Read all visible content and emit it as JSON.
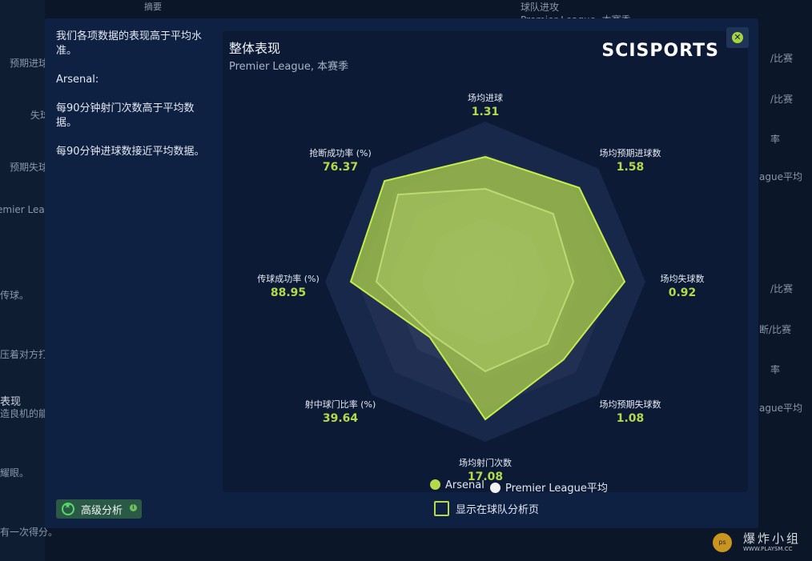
{
  "background": {
    "left_texts": [
      "预期进球",
      "失球",
      "预期失球",
      "emier League",
      "传球。",
      "压着对方打",
      "表现",
      "造良机的能",
      "耀眼。",
      "有一次得分。"
    ],
    "top_texts": [
      "摘要",
      "球队进攻",
      "Premier League, 本赛季"
    ],
    "right_texts": [
      "/比赛",
      "/比赛",
      "率",
      "ague平均",
      "/比赛",
      "断/比赛",
      "率",
      "ague平均"
    ]
  },
  "summary": {
    "intro": "我们各项数据的表现高于平均水准。",
    "team": "Arsenal:",
    "point1": "每90分钟射门次数高于平均数据。",
    "point2": "每90分钟进球数接近平均数据。"
  },
  "chart_header": {
    "title": "整体表现",
    "subtitle": "Premier League, 本赛季",
    "brand": "SCISPORTS"
  },
  "close_icon": "close-x-icon",
  "chart_data": {
    "type": "radar",
    "axes": [
      {
        "label": "场均进球",
        "value": "1.31",
        "arsenal": 0.78,
        "average": 0.58
      },
      {
        "label": "场均预期进球数",
        "value": "1.58",
        "arsenal": 0.83,
        "average": 0.6
      },
      {
        "label": "场均失球数",
        "value": "0.92",
        "arsenal": 0.87,
        "average": 0.55
      },
      {
        "label": "场均预期失球数",
        "value": "1.08",
        "arsenal": 0.69,
        "average": 0.55
      },
      {
        "label": "场均射门次数",
        "value": "17.08",
        "arsenal": 0.86,
        "average": 0.56
      },
      {
        "label": "射中球门比率 (%)",
        "value": "39.64",
        "arsenal": 0.49,
        "average": 0.47
      },
      {
        "label": "传球成功率 (%)",
        "value": "88.95",
        "arsenal": 0.84,
        "average": 0.68
      },
      {
        "label": "抢断成功率 (%)",
        "value": "76.37",
        "arsenal": 0.89,
        "average": 0.77
      }
    ],
    "series": [
      {
        "name": "Arsenal",
        "color": "#b5d94a"
      },
      {
        "name": "Premier League平均",
        "color": "#ffffff"
      }
    ]
  },
  "legend": {
    "arsenal": "Arsenal",
    "average": "Premier League平均"
  },
  "footer": {
    "advanced_label": "高级分析",
    "show_label": "显示在球队分析页"
  },
  "watermark": {
    "text": "爆炸小组",
    "url": "WWW.PLAYSM.CC",
    "logo": "ps"
  }
}
